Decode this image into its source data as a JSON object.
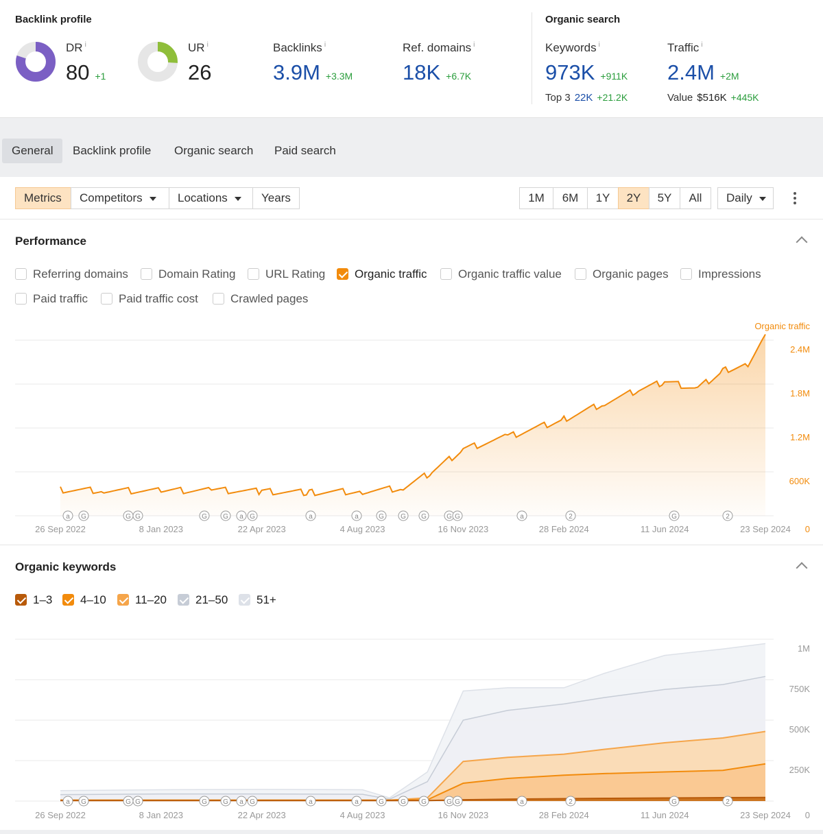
{
  "backlink_profile": {
    "title": "Backlink profile",
    "dr": {
      "label": "DR",
      "info": "i",
      "value": "80",
      "delta": "+1",
      "score": 80,
      "color": "#7b5fc4"
    },
    "ur": {
      "label": "UR",
      "info": "i",
      "value": "26",
      "score": 26,
      "color": "#8fbe3a"
    },
    "backlinks": {
      "label": "Backlinks",
      "info": "i",
      "value": "3.9M",
      "delta": "+3.3M"
    },
    "ref_domains": {
      "label": "Ref. domains",
      "info": "i",
      "value": "18K",
      "delta": "+6.7K"
    }
  },
  "organic_search": {
    "title": "Organic search",
    "keywords": {
      "label": "Keywords",
      "info": "i",
      "value": "973K",
      "delta": "+911K",
      "sub_label": "Top 3",
      "sub_value": "22K",
      "sub_delta": "+21.2K"
    },
    "traffic": {
      "label": "Traffic",
      "info": "i",
      "value": "2.4M",
      "delta": "+2M",
      "sub_label": "Value",
      "sub_value": "$516K",
      "sub_delta": "+445K"
    }
  },
  "tabs": [
    "General",
    "Backlink profile",
    "Organic search",
    "Paid search"
  ],
  "toolbar": {
    "metrics": "Metrics",
    "competitors": "Competitors",
    "locations": "Locations",
    "years": "Years",
    "ranges": [
      "1M",
      "6M",
      "1Y",
      "2Y",
      "5Y",
      "All"
    ],
    "active_range": "2Y",
    "granularity": "Daily"
  },
  "performance": {
    "title": "Performance",
    "checkboxes": [
      {
        "label": "Referring domains",
        "checked": false
      },
      {
        "label": "Domain Rating",
        "checked": false
      },
      {
        "label": "URL Rating",
        "checked": false
      },
      {
        "label": "Organic traffic",
        "checked": true
      },
      {
        "label": "Organic traffic value",
        "checked": false
      },
      {
        "label": "Organic pages",
        "checked": false
      },
      {
        "label": "Impressions",
        "checked": false
      },
      {
        "label": "Paid traffic",
        "checked": false
      },
      {
        "label": "Paid traffic cost",
        "checked": false
      },
      {
        "label": "Crawled pages",
        "checked": false
      }
    ]
  },
  "organic_keywords": {
    "title": "Organic keywords",
    "legend": [
      {
        "label": "1–3",
        "color": "#b85a0a"
      },
      {
        "label": "4–10",
        "color": "#f28b0c"
      },
      {
        "label": "11–20",
        "color": "#f5a54a"
      },
      {
        "label": "21–50",
        "color": "#c6ccd6"
      },
      {
        "label": "51+",
        "color": "#dde1e8"
      }
    ]
  },
  "annotation_markers": [
    "a",
    "G",
    "G",
    "G",
    "G",
    "G",
    "a",
    "G",
    "a",
    "a",
    "G",
    "G",
    "G",
    "G",
    "G",
    "a",
    "2",
    "G",
    "2"
  ],
  "chart_data": [
    {
      "type": "area",
      "series": [
        {
          "name": "Organic traffic",
          "color": "#f28b0c",
          "x": [
            "2022-09-26",
            "2022-11-10",
            "2023-01-08",
            "2023-03-01",
            "2023-04-22",
            "2023-06-10",
            "2023-08-04",
            "2023-09-15",
            "2023-10-15",
            "2023-11-16",
            "2024-01-01",
            "2024-02-28",
            "2024-04-10",
            "2024-05-15",
            "2024-06-11",
            "2024-07-15",
            "2024-08-10",
            "2024-09-05",
            "2024-09-23"
          ],
          "values": [
            355000,
            345000,
            340000,
            352000,
            332000,
            318000,
            335000,
            378000,
            600000,
            910000,
            1080000,
            1320000,
            1540000,
            1720000,
            1830000,
            1740000,
            1980000,
            2080000,
            2480000
          ]
        }
      ],
      "x_ticks": [
        "26 Sep 2022",
        "8 Jan 2023",
        "22 Apr 2023",
        "4 Aug 2023",
        "16 Nov 2023",
        "28 Feb 2024",
        "11 Jun 2024",
        "23 Sep 2024"
      ],
      "y_ticks": [
        "0",
        "600K",
        "1.2M",
        "1.8M",
        "2.4M"
      ],
      "y_tick_values": [
        0,
        600000,
        1200000,
        1800000,
        2400000
      ],
      "ylim": [
        0,
        2400000
      ],
      "grid": true,
      "legend": "top-right"
    },
    {
      "type": "area",
      "x": [
        "2022-09-26",
        "2023-01-08",
        "2023-04-22",
        "2023-08-04",
        "2023-09-01",
        "2023-10-10",
        "2023-11-16",
        "2024-01-01",
        "2024-02-28",
        "2024-04-10",
        "2024-06-11",
        "2024-08-10",
        "2024-09-23"
      ],
      "series": [
        {
          "name": "1–3",
          "values": [
            3000,
            3000,
            3000,
            3000,
            3000,
            3000,
            8000,
            12000,
            15000,
            17000,
            19000,
            21000,
            22000
          ]
        },
        {
          "name": "4–10",
          "values": [
            5000,
            5000,
            5000,
            5000,
            5000,
            8000,
            110000,
            140000,
            160000,
            170000,
            180000,
            190000,
            230000
          ]
        },
        {
          "name": "11–20",
          "values": [
            6000,
            6000,
            6000,
            6000,
            6000,
            20000,
            245000,
            270000,
            290000,
            320000,
            360000,
            390000,
            430000
          ]
        },
        {
          "name": "21–50",
          "values": [
            40000,
            44000,
            44000,
            42000,
            12000,
            120000,
            500000,
            560000,
            600000,
            640000,
            690000,
            720000,
            770000
          ]
        },
        {
          "name": "51+",
          "values": [
            65000,
            70000,
            72000,
            70000,
            20000,
            180000,
            680000,
            700000,
            700000,
            790000,
            900000,
            940000,
            973000
          ]
        }
      ],
      "x_ticks": [
        "26 Sep 2022",
        "8 Jan 2023",
        "22 Apr 2023",
        "4 Aug 2023",
        "16 Nov 2023",
        "28 Feb 2024",
        "11 Jun 2024",
        "23 Sep 2024"
      ],
      "y_ticks": [
        "0",
        "250K",
        "500K",
        "750K",
        "1M"
      ],
      "y_tick_values": [
        0,
        250000,
        500000,
        750000,
        1000000
      ],
      "ylim": [
        0,
        1000000
      ],
      "grid": true,
      "stacked": false
    }
  ]
}
